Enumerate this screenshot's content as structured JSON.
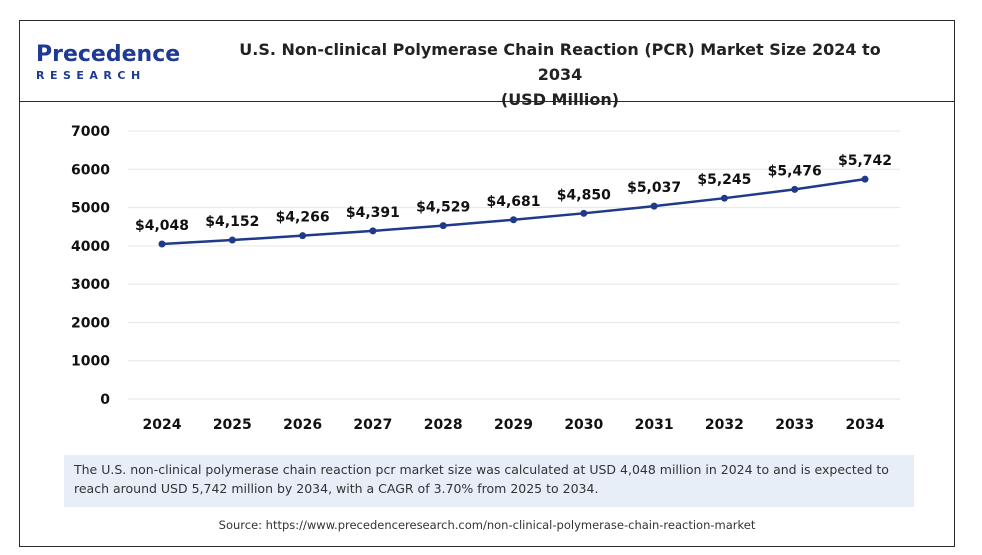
{
  "logo": {
    "main": "Precedence",
    "sub": "RESEARCH"
  },
  "title_line1": "U.S. Non-clinical Polymerase Chain Reaction (PCR) Market Size 2024 to 2034",
  "title_line2": "(USD Million)",
  "note": "The U.S. non-clinical polymerase chain reaction pcr market size was calculated at USD 4,048 million in 2024 to and is expected to reach around USD 5,742 million by 2034, with a CAGR of 3.70% from 2025 to 2034.",
  "source": "Source: https://www.precedenceresearch.com/non-clinical-polymerase-chain-reaction-market",
  "colors": {
    "line": "#1f3a8a",
    "grid": "#e6e6e6",
    "note_bg": "#e8eef8"
  },
  "chart_data": {
    "type": "line",
    "title": "U.S. Non-clinical Polymerase Chain Reaction (PCR) Market Size 2024 to 2034 (USD Million)",
    "xlabel": "",
    "ylabel": "",
    "ylim": [
      0,
      7000
    ],
    "yticks": [
      0,
      1000,
      2000,
      3000,
      4000,
      5000,
      6000,
      7000
    ],
    "grid": true,
    "categories": [
      "2024",
      "2025",
      "2026",
      "2027",
      "2028",
      "2029",
      "2030",
      "2031",
      "2032",
      "2033",
      "2034"
    ],
    "values": [
      4048,
      4152,
      4266,
      4391,
      4529,
      4681,
      4850,
      5037,
      5245,
      5476,
      5742
    ],
    "data_labels": [
      "$4,048",
      "$4,152",
      "$4,266",
      "$4,391",
      "$4,529",
      "$4,681",
      "$4,850",
      "$5,037",
      "$5,245",
      "$5,476",
      "$5,742"
    ]
  }
}
